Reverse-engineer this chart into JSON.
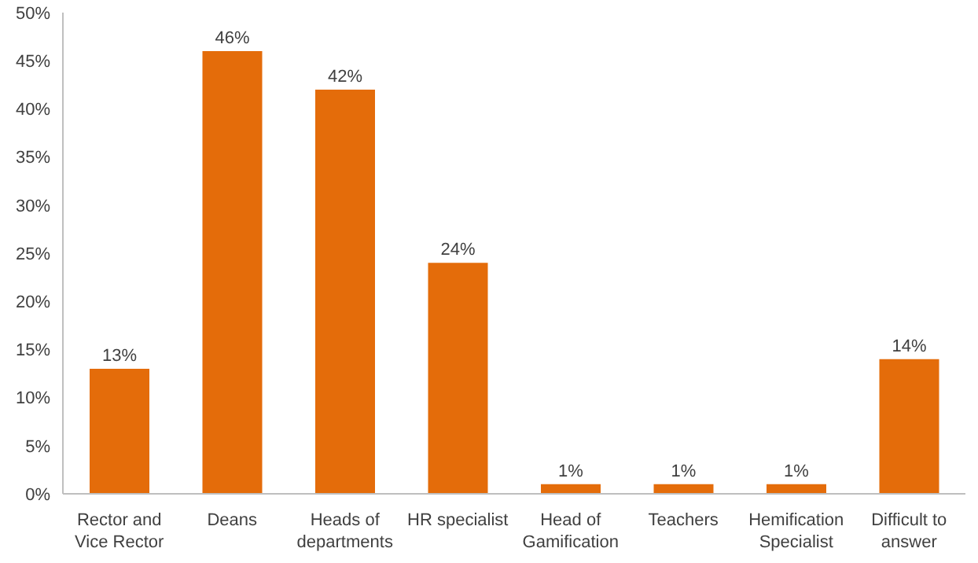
{
  "chart_data": {
    "type": "bar",
    "categories": [
      "Rector and Vice Rector",
      "Deans",
      "Heads of departments",
      "HR specialist",
      "Head of Gamification",
      "Teachers",
      "Hemification Specialist",
      "Difficult to answer"
    ],
    "values": [
      13,
      46,
      42,
      24,
      1,
      1,
      1,
      14
    ],
    "value_labels": [
      "13%",
      "46%",
      "42%",
      "24%",
      "1%",
      "1%",
      "1%",
      "14%"
    ],
    "color": "#e46c0a",
    "ylim": [
      0,
      50
    ],
    "yticks": [
      {
        "value": 0,
        "label": "0%"
      },
      {
        "value": 5,
        "label": "5%"
      },
      {
        "value": 10,
        "label": "10%"
      },
      {
        "value": 15,
        "label": "15%"
      },
      {
        "value": 20,
        "label": "20%"
      },
      {
        "value": 25,
        "label": "25%"
      },
      {
        "value": 30,
        "label": "30%"
      },
      {
        "value": 35,
        "label": "35%"
      },
      {
        "value": 40,
        "label": "40%"
      },
      {
        "value": 45,
        "label": "45%"
      },
      {
        "value": 50,
        "label": "50%"
      }
    ],
    "grid": false,
    "legend": false
  }
}
